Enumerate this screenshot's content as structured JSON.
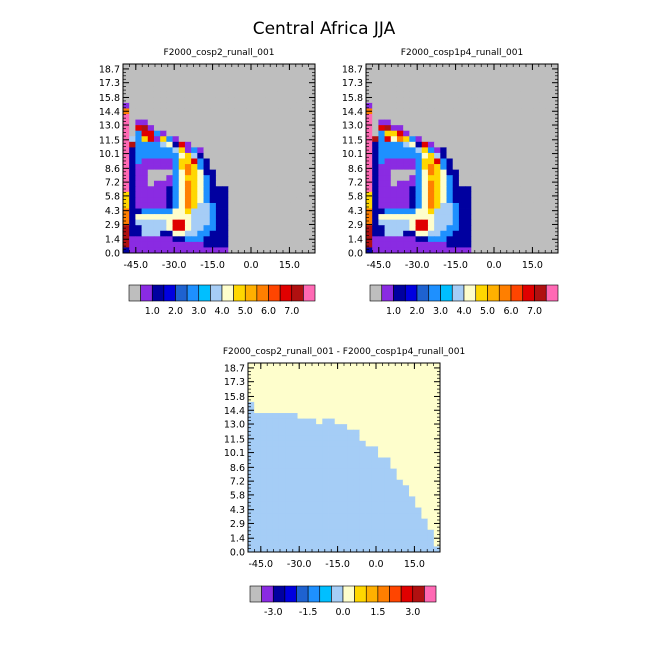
{
  "figure": {
    "title": "Central Africa JJA"
  },
  "colors": {
    "gray": "#bebebe",
    "diff_light_blue": "#a5cdf6",
    "diff_light_yellow": "#fefecc",
    "palette14": [
      "#bebebe",
      "#8a2be2",
      "#0000a0",
      "#0000e0",
      "#3d6be8",
      "#1e90ff",
      "#00bfff",
      "#a6cdf6",
      "#fefecc",
      "#ffd700",
      "#ffa500",
      "#ff7f00",
      "#ff4500",
      "#e00000",
      "#b01010",
      "#8b2222",
      "#ff69b4"
    ],
    "diff_palette": [
      "#bebebe",
      "#8a2be2",
      "#0000a0",
      "#0000e0",
      "#3d6be8",
      "#1e90ff",
      "#00bfff",
      "#a6cdf6",
      "#fefecc",
      "#ffd700",
      "#ffa500",
      "#ff7f00",
      "#ff4500",
      "#e00000",
      "#b01010",
      "#8b2222",
      "#ff69b4"
    ]
  },
  "chart_data": [
    {
      "type": "heatmap",
      "title": "F2000_cosp2_runall_001",
      "x_ticks": [
        "-45.0",
        "-30.0",
        "-15.0",
        "0.0",
        "15.0"
      ],
      "x_tick_values": [
        -45,
        -30,
        -15,
        0,
        15
      ],
      "xlim": [
        -50,
        25
      ],
      "y_ticks": [
        "0.0",
        "1.4",
        "2.9",
        "4.3",
        "5.8",
        "7.2",
        "8.6",
        "10.1",
        "11.5",
        "13.0",
        "14.4",
        "15.8",
        "17.3",
        "18.7"
      ],
      "ylim": [
        0,
        19.2
      ],
      "missing_color": "#bebebe",
      "colorbar_labels": [
        "1.0",
        "2.0",
        "3.0",
        "4.0",
        "5.0",
        "6.0",
        "7.0"
      ],
      "rows": [
        "GGGGGGGGGGGGGGGGGGGGGGGGGGGGGGG",
        "GGGGGGGGGGGGGGGGGGGGGGGGGGGGGGG",
        "GGGGGGGGGGGGGGGGGGGGGGGGGGGGGGG",
        "GGGGGGGGGGGGGGGGGGGGGGGGGGGGGGG",
        "GGGGGGGGGGGGGGGGGGGGGGGGGGGGGGG",
        "GGGGGGGGGGGGGGGGGGGGGGGGGGGGGGG",
        "GGGGGGGGGGGGGGGGGGGGGGGGGGGGGGG",
        "bGGGGGGGGGGGGGGGGGGGGGGGGGGGGGG",
        "oGGGGGGGGGGGGGGGGGGGGGGGGGGGGGG",
        "pGGGGGGGGGGGGGGGGGGGGGGGGGGGGGG",
        "pGbbGGGGGGGGGGGGGGGGGGGGGGGGGGG",
        "pGrmbGGGGGGGGGGGGGGGGGGGGGGGGGG",
        "pGcrrcbGGGGGGGGGGGGGGGGGGGGGGGG",
        "plcyrbycbGGGGGGGGGGGGGGGGGGGGGG",
        "pmcccclwdrbGGGGGGGGGGGGGGGGGGGG",
        "pdcccccclybcbGGGGGGGGGGGGGGGGGG",
        "pdcccccccwyldGGGGGGGGGGGGGGGGGG",
        "pdcbbbbbcyyrcdGGGGGGGGGGGGGGGGG",
        "pdbbbbbbcyoycdGGGGGGGGGGGGGGGGG",
        "pdbbGGGGcwoywddGGGGGGGGGGGGGGGG",
        "pdbbGGGbcwyywcdGGGGGGGGGGGGGGGG",
        "pdbbGbbbcwoywcdGGGGGGGGGGGGGGGG",
        "pdbbbbbdcwoywcdddGGGGGGGGGGGGGG",
        "ydbbbbbdcwoywcdddGGGGGGGGGGGGGG",
        "ydbbbbbdcwoywcdddGGGGGGGGGGGGGG",
        "ydbbbbbdcwoyllcddGGGGGGGGGGGGGG",
        "oddcccccwwylllcddGGGGGGGGGGGGGG",
        "odwwwwwwwwwlllcddGGGGGGGGGGGGGG",
        "odlllllwrrwlllcddGGGGGGGGGGGGGG",
        "mddllllwrrwllccddGGGGGGGGGGGGGG",
        "mddlllddwwllccdddGGGGGGGGGGGGGG",
        "mbbbbbbbddcccddddGGGGGGGGGGGGGG",
        "mbbbbbbbbbbbbddddGGGGGGGGGGGGGG",
        "dbbbbbbbbbbbbbbbbGGGGGGGGGGGGGG"
      ]
    },
    {
      "type": "heatmap",
      "title": "F2000_cosp1p4_runall_001",
      "x_ticks": [
        "-45.0",
        "-30.0",
        "-15.0",
        "0.0",
        "15.0"
      ],
      "x_tick_values": [
        -45,
        -30,
        -15,
        0,
        15
      ],
      "xlim": [
        -50,
        25
      ],
      "y_ticks": [
        "0.0",
        "1.4",
        "2.9",
        "4.3",
        "5.8",
        "7.2",
        "8.6",
        "10.1",
        "11.5",
        "13.0",
        "14.4",
        "15.8",
        "17.3",
        "18.7"
      ],
      "ylim": [
        0,
        19.2
      ],
      "missing_color": "#bebebe",
      "colorbar_labels": [
        "1.0",
        "2.0",
        "3.0",
        "4.0",
        "5.0",
        "6.0",
        "7.0"
      ],
      "rows": [
        "GGGGGGGGGGGGGGGGGGGGGGGGGGGGGGG",
        "GGGGGGGGGGGGGGGGGGGGGGGGGGGGGGG",
        "GGGGGGGGGGGGGGGGGGGGGGGGGGGGGGG",
        "GGGGGGGGGGGGGGGGGGGGGGGGGGGGGGG",
        "GGGGGGGGGGGGGGGGGGGGGGGGGGGGGGG",
        "GGGGGGGGGGGGGGGGGGGGGGGGGGGGGGG",
        "GGGGGGGGGGGGGGGGGGGGGGGGGGGGGGG",
        "bGGGGGGGGGGGGGGGGGGGGGGGGGGGGGG",
        "oGGGGGGGGGGGGGGGGGGGGGGGGGGGGGG",
        "pGGGGGGGGGGGGGGGGGGGGGGGGGGGGGG",
        "pGbbGGGGGGGGGGGGGGGGGGGGGGGGGGG",
        "pGrmbbGGGGGGGGGGGGGGGGGGGGGGGGG",
        "pGcyyrbGGGGGGGGGGGGGGGGGGGGGGGG",
        "pmcrwoycbGGGGGGGGGGGGGGGGGGGGGG",
        "pdcccclwdrbGGGGGGGGGGGGGGGGGGGG",
        "pdcccccclycbdGGGGGGGGGGGGGGGGGG",
        "pdcccccccwyldGGGGGGGGGGGGGGGGGG",
        "pdcbbbbbcyyrcdGGGGGGGGGGGGGGGGG",
        "pdbbbbbbcyoycdGGGGGGGGGGGGGGGGG",
        "pdbbGGGGcwoywddGGGGGGGGGGGGGGGG",
        "pdbbGGGbcwyywcdGGGGGGGGGGGGGGGG",
        "pdbbGbbbcwoywcdGGGGGGGGGGGGGGGG",
        "pdbbbbbdcwoywcdddGGGGGGGGGGGGGG",
        "ydbbbbbdcwoywcdddGGGGGGGGGGGGGG",
        "ydbbbbbdcwoywcdddGGGGGGGGGGGGGG",
        "ydbbbbbdcwoyllcddGGGGGGGGGGGGGG",
        "oddcccccwwylllcddGGGGGGGGGGGGGG",
        "odwwwwwwwwwlllcddGGGGGGGGGGGGGG",
        "odlllllwrrwlllcddGGGGGGGGGGGGGG",
        "mddllllwrrwllccddGGGGGGGGGGGGGG",
        "mddlllddwwllccdddGGGGGGGGGGGGGG",
        "mbbbbbbbddcccddddGGGGGGGGGGGGGG",
        "mbbbbbbbbbbbbddddGGGGGGGGGGGGGG",
        "dbbbbbbbbbbbbbbbbGGGGGGGGGGGGGG"
      ]
    },
    {
      "type": "heatmap",
      "title": "F2000_cosp2_runall_001 - F2000_cosp1p4_runall_001",
      "x_ticks": [
        "-45.0",
        "-30.0",
        "-15.0",
        "0.0",
        "15.0"
      ],
      "x_tick_values": [
        -45,
        -30,
        -15,
        0,
        15
      ],
      "xlim": [
        -50,
        25
      ],
      "y_ticks": [
        "0.0",
        "1.4",
        "2.9",
        "4.3",
        "5.8",
        "7.2",
        "8.6",
        "10.1",
        "11.5",
        "13.0",
        "14.4",
        "15.8",
        "17.3",
        "18.7"
      ],
      "ylim": [
        0,
        19.2
      ],
      "colorbar_labels": [
        "-3.0",
        "-1.5",
        "0.0",
        "1.5",
        "3.0"
      ],
      "rows": [
        "YYYYYYYYYYYYYYYYYYYYYYYYYYYYYYY",
        "YYYYYYYYYYYYYYYYYYYYYYYYYYYYYYY",
        "YYYYYYYYYYYYYYYYYYYYYYYYYYYYYYY",
        "YYYYYYYYYYYYYYYYYYYYYYYYYYYYYYY",
        "YYYYYYYYYYYYYYYYYYYYYYYYYYYYYYY",
        "YYYYYYYYYYYYYYYYYYYYYYYYYYYYYYY",
        "YYYYYYYYYYYYYYYYYYYYYYYYYYYYYYY",
        "BYYYYYYYYYYYYYYYYYYYYYYYYYYYYYY",
        "BYYYYYYYYYYYYYYYYYYYYYYYYYYYYYY",
        "BBBBBBBBYYYYYYYYYYYYYYYYYYYYYYY",
        "BBBBBBBBBBBYBBYYYYYYYYYYYYYYYYY",
        "BBBBBBBBBBBBBBBBYYYYYYYYYYYYYYY",
        "BBBBBBBBBBBBBBBBBBYYYYYYYYYYYYY",
        "BBBBBBBBBBBBBBBBBBYYYYYYYYYYYYY",
        "BBBBBBBBBBBBBBBBBBBYYYYYYYYYYYY",
        "BBBBBBBBBBBBBBBBBBBBBYYYYYYYYYY",
        "BBBBBBBBBBBBBBBBBBBBBYYYYYYYYYY",
        "BBBBBBBBBBBBBBBBBBBBBBBYYYYYYYY",
        "BBBBBBBBBBBBBBBBBBBBBBBYYYYYYYY",
        "BBBBBBBBBBBBBBBBBBBBBBBBYYYYYYY",
        "BBBBBBBBBBBBBBBBBBBBBBBBYYYYYYY",
        "BBBBBBBBBBBBBBBBBBBBBBBBBYYYYYY",
        "BBBBBBBBBBBBBBBBBBBBBBBBBBYYYYY",
        "BBBBBBBBBBBBBBBBBBBBBBBBBBYYYYY",
        "BBBBBBBBBBBBBBBBBBBBBBBBBBBYYYY",
        "BBBBBBBBBBBBBBBBBBBBBBBBBBBYYYY",
        "BBBBBBBBBBBBBBBBBBBBBBBBBBBBYYY",
        "BBBBBBBBBBBBBBBBBBBBBBBBBBBBYYY",
        "BBBBBBBBBBBBBBBBBBBBBBBBBBBBBYY",
        "BBBBBBBBBBBBBBBBBBBBBBBBBBBBBYY",
        "BBBBBBBBBBBBBBBBBBBBBBBBBBBBBBY",
        "BBBBBBBBBBBBBBBBBBBBBBBBBBBBBBY",
        "BBBBBBBBBBBBBBBBBBBBBBBBBBBBBBY",
        "BBBBBBBBBBBBBBBBBBBBBBBBBBBBBBB"
      ],
      "panel_patch": true
    }
  ]
}
